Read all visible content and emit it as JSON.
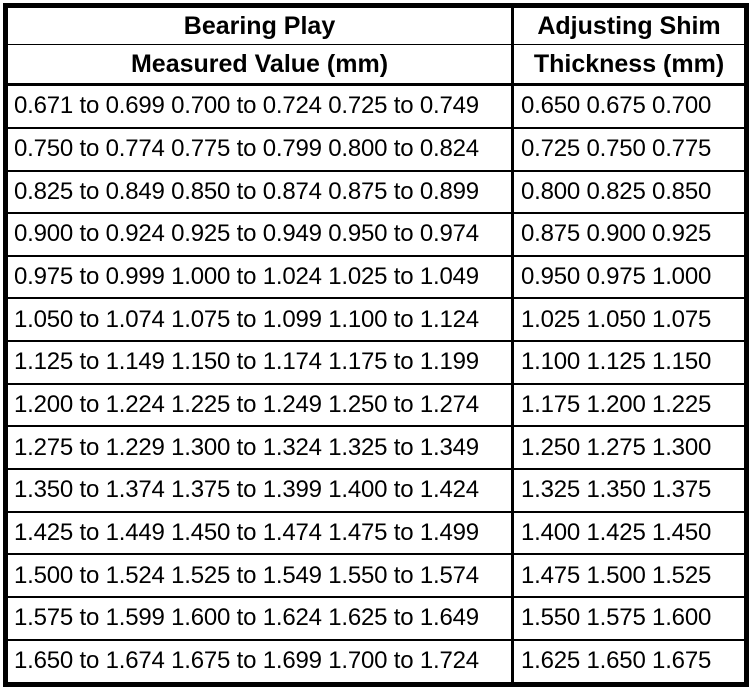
{
  "table": {
    "header": {
      "col1_line1": "Bearing Play",
      "col1_line2": "Measured Value (mm)",
      "col2_line1": "Adjusting Shim",
      "col2_line2": "Thickness (mm)"
    },
    "rows": [
      {
        "measured": "0.671 to 0.699 0.700 to 0.724 0.725 to 0.749",
        "shim": "0.650 0.675 0.700"
      },
      {
        "measured": "0.750 to 0.774 0.775 to 0.799 0.800 to 0.824",
        "shim": "0.725 0.750 0.775"
      },
      {
        "measured": "0.825 to 0.849 0.850 to 0.874 0.875 to 0.899",
        "shim": "0.800 0.825 0.850"
      },
      {
        "measured": "0.900 to 0.924 0.925 to 0.949 0.950 to 0.974",
        "shim": "0.875 0.900 0.925"
      },
      {
        "measured": "0.975 to 0.999 1.000 to 1.024 1.025 to 1.049",
        "shim": "0.950 0.975 1.000"
      },
      {
        "measured": "1.050 to 1.074 1.075 to 1.099 1.100 to 1.124",
        "shim": "1.025 1.050 1.075"
      },
      {
        "measured": "1.125 to 1.149 1.150 to 1.174 1.175 to 1.199",
        "shim": "1.100 1.125 1.150"
      },
      {
        "measured": "1.200 to 1.224 1.225 to 1.249 1.250 to 1.274",
        "shim": "1.175 1.200 1.225"
      },
      {
        "measured": "1.275 to 1.229 1.300 to 1.324 1.325 to 1.349",
        "shim": "1.250 1.275 1.300"
      },
      {
        "measured": "1.350 to 1.374 1.375 to 1.399 1.400 to 1.424",
        "shim": "1.325 1.350 1.375"
      },
      {
        "measured": "1.425 to 1.449 1.450 to 1.474 1.475 to 1.499",
        "shim": "1.400 1.425 1.450"
      },
      {
        "measured": "1.500 to 1.524 1.525 to 1.549 1.550 to 1.574",
        "shim": "1.475 1.500 1.525"
      },
      {
        "measured": "1.575 to 1.599 1.600 to 1.624 1.625 to 1.649",
        "shim": "1.550 1.575 1.600"
      },
      {
        "measured": "1.650 to 1.674 1.675 to 1.699 1.700 to 1.724",
        "shim": "1.625 1.650 1.675"
      }
    ]
  },
  "colors": {
    "border": "#000000",
    "text": "#000000",
    "background": "#ffffff"
  }
}
